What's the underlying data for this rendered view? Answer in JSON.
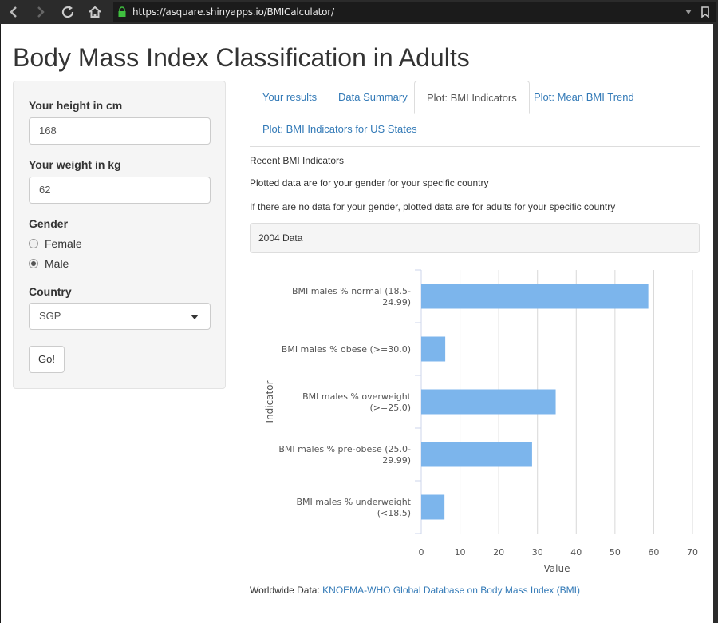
{
  "browser": {
    "url": "https://asquare.shinyapps.io/BMICalculator/"
  },
  "page_title": "Body Mass Index Classification in Adults",
  "sidebar": {
    "height_label": "Your height in cm",
    "height_value": "168",
    "weight_label": "Your weight in kg",
    "weight_value": "62",
    "gender_label": "Gender",
    "gender_options": [
      "Female",
      "Male"
    ],
    "gender_selected": "Male",
    "country_label": "Country",
    "country_value": "SGP",
    "go_label": "Go!"
  },
  "tabs": [
    {
      "label": "Your results",
      "active": false
    },
    {
      "label": "Data Summary",
      "active": false
    },
    {
      "label": "Plot: BMI Indicators",
      "active": true
    },
    {
      "label": "Plot: Mean BMI Trend",
      "active": false
    },
    {
      "label": "Plot: BMI Indicators for US States",
      "active": false
    }
  ],
  "main": {
    "heading": "Recent BMI Indicators",
    "line1": "Plotted data are for your gender for your specific country",
    "line2": "If there are no data for your gender, plotted data are for adults for your specific country",
    "data_year": "2004 Data",
    "footer_prefix": "Worldwide Data:",
    "footer_link": "KNOEMA-WHO Global Database on Body Mass Index (BMI)"
  },
  "colors": {
    "bar": "#7cb5ec",
    "link": "#337ab7"
  },
  "chart_data": {
    "type": "bar",
    "orientation": "horizontal",
    "categories": [
      [
        "BMI males % normal (18.5-",
        "24.99)"
      ],
      [
        "BMI males % obese (>=30.0)"
      ],
      [
        "BMI males % overweight",
        "(>=25.0)"
      ],
      [
        "BMI males % pre-obese (25.0-",
        "29.99)"
      ],
      [
        "BMI males % underweight",
        "(<18.5)"
      ]
    ],
    "values": [
      58.6,
      6.2,
      34.7,
      28.6,
      6.0
    ],
    "xlabel": "Value",
    "ylabel": "Indicator",
    "xlim": [
      0,
      70
    ],
    "xticks": [
      0,
      10,
      20,
      30,
      40,
      50,
      60,
      70
    ],
    "grid": true
  }
}
